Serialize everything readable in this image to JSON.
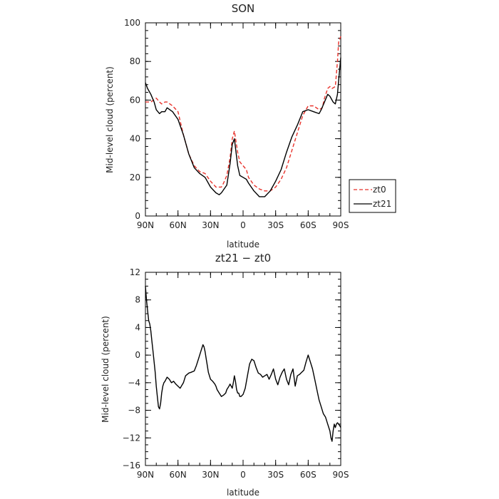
{
  "chart_data": [
    {
      "type": "line",
      "title": "SON",
      "xlabel": "latitude",
      "ylabel": "Mid-level cloud (percent)",
      "xlim": [
        -90,
        90
      ],
      "ylim": [
        0,
        100
      ],
      "x_ticks": [
        -90,
        -60,
        -30,
        0,
        30,
        60,
        90
      ],
      "x_tick_labels": [
        "90N",
        "60N",
        "30N",
        "0",
        "30S",
        "60S",
        "90S"
      ],
      "y_ticks": [
        0,
        20,
        40,
        60,
        80,
        100
      ],
      "y_tick_labels": [
        "0",
        "20",
        "40",
        "60",
        "80",
        "100"
      ],
      "grid": false,
      "legend_position": "outside-right",
      "series": [
        {
          "name": "zt0",
          "color": "#e8322b",
          "dash": "dashed",
          "x": [
            -90,
            -85,
            -80,
            -77,
            -75,
            -72,
            -70,
            -65,
            -60,
            -55,
            -50,
            -45,
            -40,
            -35,
            -30,
            -25,
            -20,
            -18,
            -15,
            -12,
            -10,
            -8,
            -5,
            -3,
            0,
            3,
            5,
            10,
            15,
            20,
            25,
            30,
            35,
            40,
            45,
            50,
            55,
            60,
            65,
            70,
            73,
            75,
            78,
            80,
            82,
            85,
            87,
            88,
            90
          ],
          "y": [
            59,
            59,
            61,
            59,
            58,
            59,
            59,
            57,
            54,
            42,
            32,
            26,
            23,
            22,
            18,
            15,
            15,
            17,
            21,
            30,
            40,
            44,
            33,
            28,
            26,
            24,
            20,
            16,
            14,
            13,
            13,
            15,
            19,
            25,
            34,
            43,
            52,
            57,
            57,
            55,
            56,
            61,
            66,
            67,
            66,
            67,
            80,
            90,
            93
          ]
        },
        {
          "name": "zt21",
          "color": "#000000",
          "dash": "solid",
          "x": [
            -90,
            -88,
            -85,
            -82,
            -80,
            -77,
            -75,
            -72,
            -70,
            -65,
            -60,
            -55,
            -50,
            -45,
            -40,
            -35,
            -30,
            -25,
            -22,
            -20,
            -15,
            -12,
            -10,
            -8,
            -5,
            -3,
            0,
            3,
            5,
            10,
            15,
            20,
            25,
            30,
            35,
            40,
            45,
            50,
            55,
            60,
            65,
            70,
            72,
            75,
            78,
            80,
            83,
            85,
            87,
            88,
            90
          ],
          "y": [
            69,
            66,
            63,
            59,
            55,
            53,
            54,
            54,
            56,
            54,
            50,
            42,
            32,
            25,
            22,
            20,
            15,
            12,
            11,
            12,
            16,
            27,
            37,
            40,
            26,
            21,
            20,
            19,
            17,
            13,
            10,
            10,
            13,
            18,
            24,
            33,
            41,
            47,
            54,
            55,
            54,
            53,
            55,
            59,
            63,
            62,
            59,
            58,
            63,
            70,
            82
          ]
        }
      ]
    },
    {
      "type": "line",
      "title": "zt21 − zt0",
      "xlabel": "latitude",
      "ylabel": "Mid-level cloud (percent)",
      "xlim": [
        -90,
        90
      ],
      "ylim": [
        -16,
        12
      ],
      "x_ticks": [
        -90,
        -60,
        -30,
        0,
        30,
        60,
        90
      ],
      "x_tick_labels": [
        "90N",
        "60N",
        "30N",
        "0",
        "30S",
        "60S",
        "90S"
      ],
      "y_ticks": [
        -16,
        -12,
        -8,
        -4,
        0,
        4,
        8,
        12
      ],
      "y_tick_labels": [
        "−16",
        "−12",
        "−8",
        "−4",
        "0",
        "4",
        "8",
        "12"
      ],
      "grid": false,
      "series": [
        {
          "color": "#000000",
          "dash": "solid",
          "x": [
            -90,
            -89,
            -88,
            -87,
            -86,
            -85,
            -84,
            -83,
            -82,
            -81,
            -80,
            -79,
            -78,
            -77,
            -76,
            -75,
            -74,
            -73,
            -72,
            -70,
            -68,
            -66,
            -64,
            -62,
            -60,
            -58,
            -55,
            -53,
            -50,
            -48,
            -45,
            -43,
            -41,
            -39,
            -37,
            -36,
            -35,
            -34,
            -33,
            -32,
            -30,
            -28,
            -26,
            -25,
            -24,
            -22,
            -20,
            -18,
            -16,
            -15,
            -13,
            -12,
            -11,
            -10,
            -9,
            -8,
            -7,
            -6,
            -5,
            -4,
            -3,
            -2,
            0,
            2,
            4,
            6,
            8,
            10,
            12,
            14,
            16,
            18,
            20,
            22,
            24,
            26,
            28,
            30,
            32,
            34,
            36,
            38,
            40,
            42,
            44,
            46,
            48,
            50,
            52,
            54,
            56,
            58,
            60,
            62,
            64,
            66,
            68,
            70,
            72,
            74,
            76,
            78,
            80,
            81,
            82,
            83,
            84,
            85,
            86,
            87,
            88,
            89,
            90
          ],
          "y": [
            10,
            8,
            6.5,
            5,
            4.5,
            3.5,
            2,
            0.5,
            -1,
            -2.5,
            -4.5,
            -6,
            -7.5,
            -7.8,
            -7,
            -5.5,
            -4.5,
            -4,
            -3.8,
            -3.2,
            -3.5,
            -4,
            -3.8,
            -4.2,
            -4.5,
            -4.8,
            -4,
            -3,
            -2.6,
            -2.5,
            -2.3,
            -1.5,
            -0.5,
            0.5,
            1.5,
            1.2,
            0.5,
            -0.5,
            -1.5,
            -2.5,
            -3.5,
            -3.8,
            -4.2,
            -4.5,
            -5,
            -5.5,
            -6,
            -5.8,
            -5.5,
            -5,
            -4.5,
            -4.2,
            -4.5,
            -4.8,
            -4,
            -3,
            -3.8,
            -5,
            -5.5,
            -5.5,
            -6,
            -6,
            -5.7,
            -4.8,
            -3,
            -1.3,
            -0.6,
            -0.8,
            -1.8,
            -2.6,
            -2.8,
            -3.2,
            -3,
            -2.8,
            -3.5,
            -2.8,
            -2,
            -3.5,
            -4.3,
            -3.2,
            -2.5,
            -2,
            -3.5,
            -4.3,
            -2.8,
            -2,
            -4.5,
            -3,
            -2.8,
            -2.5,
            -2.2,
            -1,
            0,
            -1,
            -2,
            -3.5,
            -5,
            -6.5,
            -7.5,
            -8.5,
            -9,
            -10,
            -11,
            -12,
            -12.5,
            -11,
            -10,
            -10.5,
            -10,
            -9.8,
            -10,
            -10.2,
            -10.5
          ]
        }
      ]
    }
  ]
}
